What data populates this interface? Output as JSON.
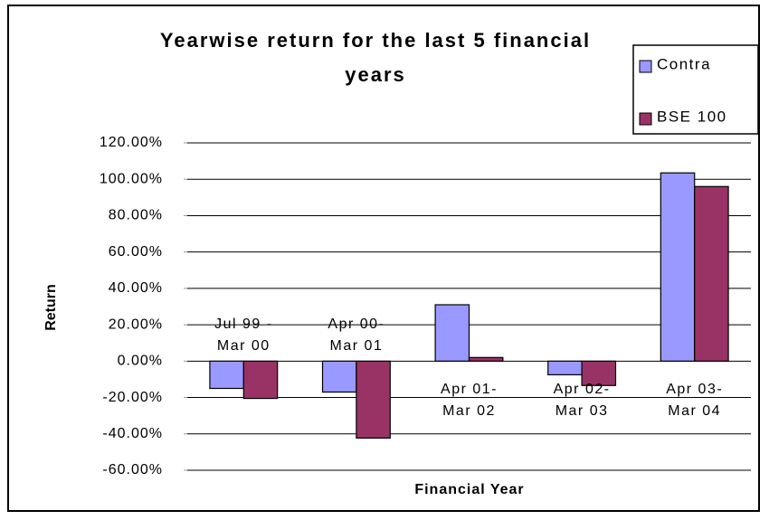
{
  "chart_data": {
    "type": "bar",
    "title": "Yearwise return for the last 5 financial\nyears",
    "x_label": "Financial Year",
    "y_label": "Return",
    "categories": [
      "Jul 99 -\nMar 00",
      "Apr 00-\nMar 01",
      "Apr 01-\nMar 02",
      "Apr 02-\nMar 03",
      "Apr 03-\nMar 04"
    ],
    "series": [
      {
        "name": "Contra",
        "color": "#9999ff",
        "values": [
          -15,
          -17,
          31,
          -7.5,
          103.5
        ]
      },
      {
        "name": "BSE 100",
        "color": "#993366",
        "values": [
          -20.5,
          -42.3,
          2,
          -13.4,
          96
        ]
      }
    ],
    "ylim": [
      -60,
      120
    ],
    "yticks": [
      {
        "value": -60,
        "label": "-60.00%"
      },
      {
        "value": -40,
        "label": "-40.00%"
      },
      {
        "value": -20,
        "label": "-20.00%"
      },
      {
        "value": 0,
        "label": "0.00%"
      },
      {
        "value": 20,
        "label": "20.00%"
      },
      {
        "value": 40,
        "label": "40.00%"
      },
      {
        "value": 60,
        "label": "60.00%"
      },
      {
        "value": 80,
        "label": "80.00%"
      },
      {
        "value": 100,
        "label": "100.00%"
      },
      {
        "value": 120,
        "label": "120.00%"
      }
    ],
    "grid": true,
    "legend": "top-right"
  }
}
